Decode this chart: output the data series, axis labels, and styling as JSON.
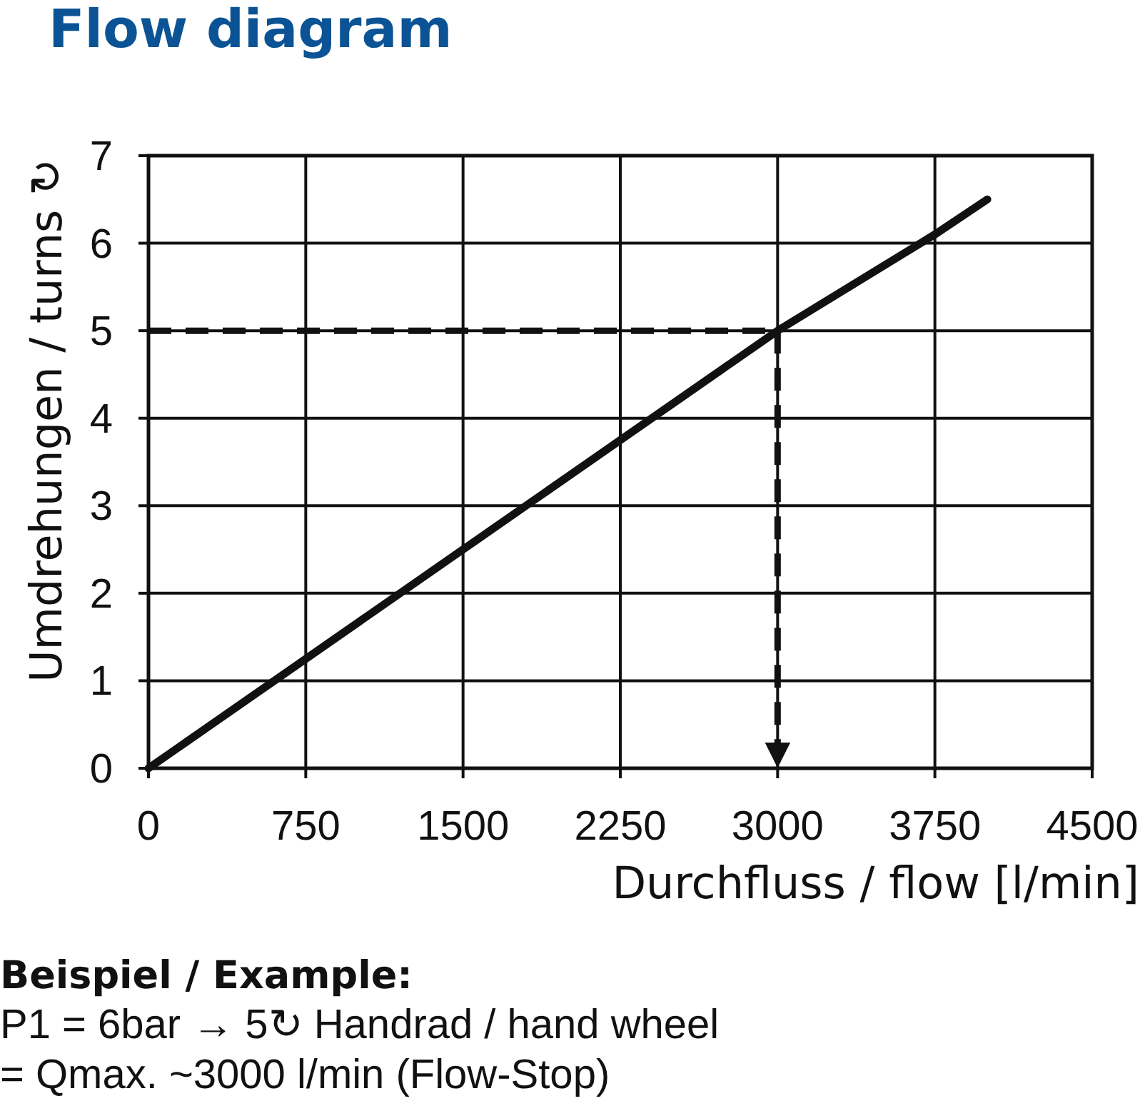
{
  "chart_data": {
    "type": "line",
    "title": "Flow diagram",
    "xlabel": "Durchfluss / flow  [l/min]",
    "ylabel": "Umdrehungen / turns ↻",
    "x": [
      0,
      1500,
      3000,
      3750,
      4000
    ],
    "series": [
      {
        "color": "#111111",
        "values": [
          0,
          2.5,
          5,
          6.1,
          6.5
        ]
      }
    ],
    "ref_lines": [
      {
        "axis": "y",
        "value": 5,
        "color": "#111111",
        "line_style": "dashed"
      },
      {
        "axis": "x",
        "value": 3000,
        "color": "#111111",
        "line_style": "dashed"
      }
    ],
    "xlim": [
      0,
      4500
    ],
    "ylim": [
      0,
      7
    ],
    "xticks": [
      0,
      750,
      1500,
      2250,
      3000,
      3750,
      4500
    ],
    "yticks": [
      0,
      1,
      2,
      3,
      4,
      5,
      6,
      7
    ],
    "grid": true,
    "line_style": "solid",
    "annotations": [
      "Beispiel / Example:",
      "P1 = 6bar → 5↻ Handrad / hand wheel",
      "= Qmax. ~3000 l/min (Flow-Stop)"
    ]
  }
}
